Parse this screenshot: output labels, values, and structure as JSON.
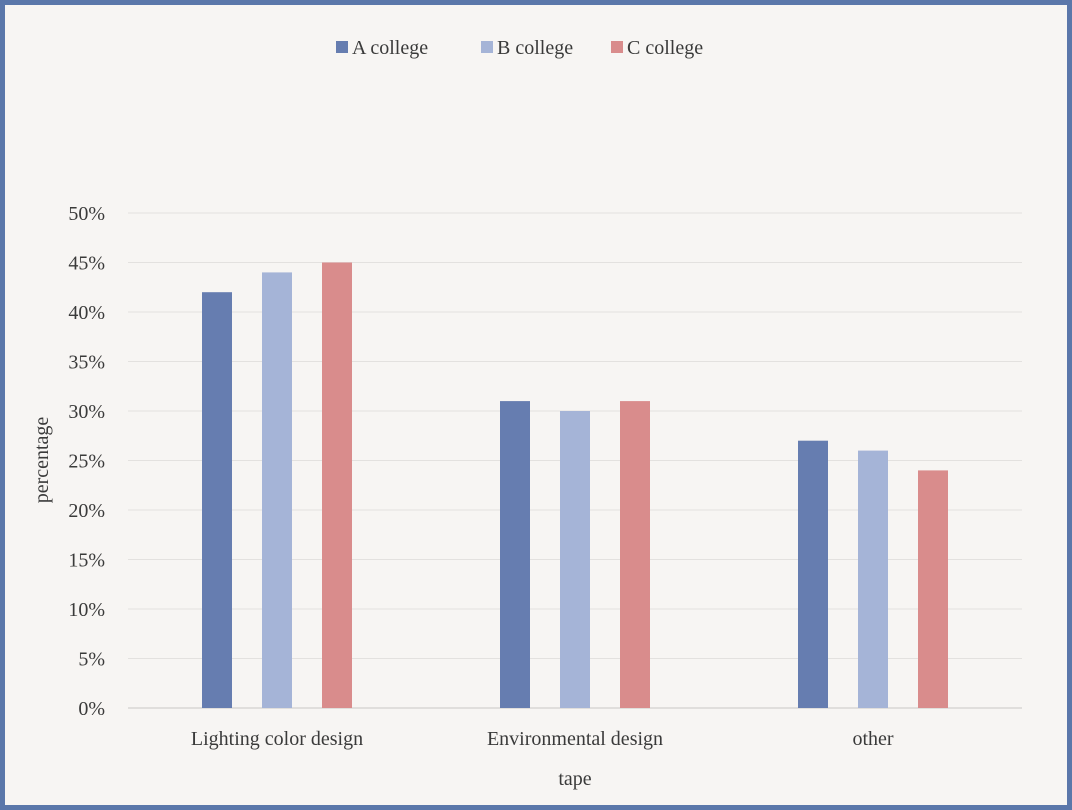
{
  "chart_data": {
    "type": "bar",
    "title": "",
    "xlabel": "tape",
    "ylabel": "percentage",
    "categories": [
      "Lighting color design",
      "Environmental design",
      "other"
    ],
    "series": [
      {
        "name": "A college",
        "values": [
          42,
          31,
          27
        ],
        "color": "#667db0"
      },
      {
        "name": "B college",
        "values": [
          44,
          30,
          26
        ],
        "color": "#a5b4d7"
      },
      {
        "name": "C college",
        "values": [
          45,
          31,
          24
        ],
        "color": "#d98c8c"
      }
    ],
    "ylim": [
      0,
      50
    ],
    "yticks": [
      0,
      5,
      10,
      15,
      20,
      25,
      30,
      35,
      40,
      45,
      50
    ],
    "ytick_labels": [
      "0%",
      "5%",
      "10%",
      "15%",
      "20%",
      "25%",
      "30%",
      "35%",
      "40%",
      "45%",
      "50%"
    ],
    "grid": true,
    "legend_position": "top"
  },
  "colors": {
    "border": "#5b77aa",
    "background": "#f7f5f3",
    "gridline": "#e3e1df",
    "axis": "#c9c7c5"
  }
}
